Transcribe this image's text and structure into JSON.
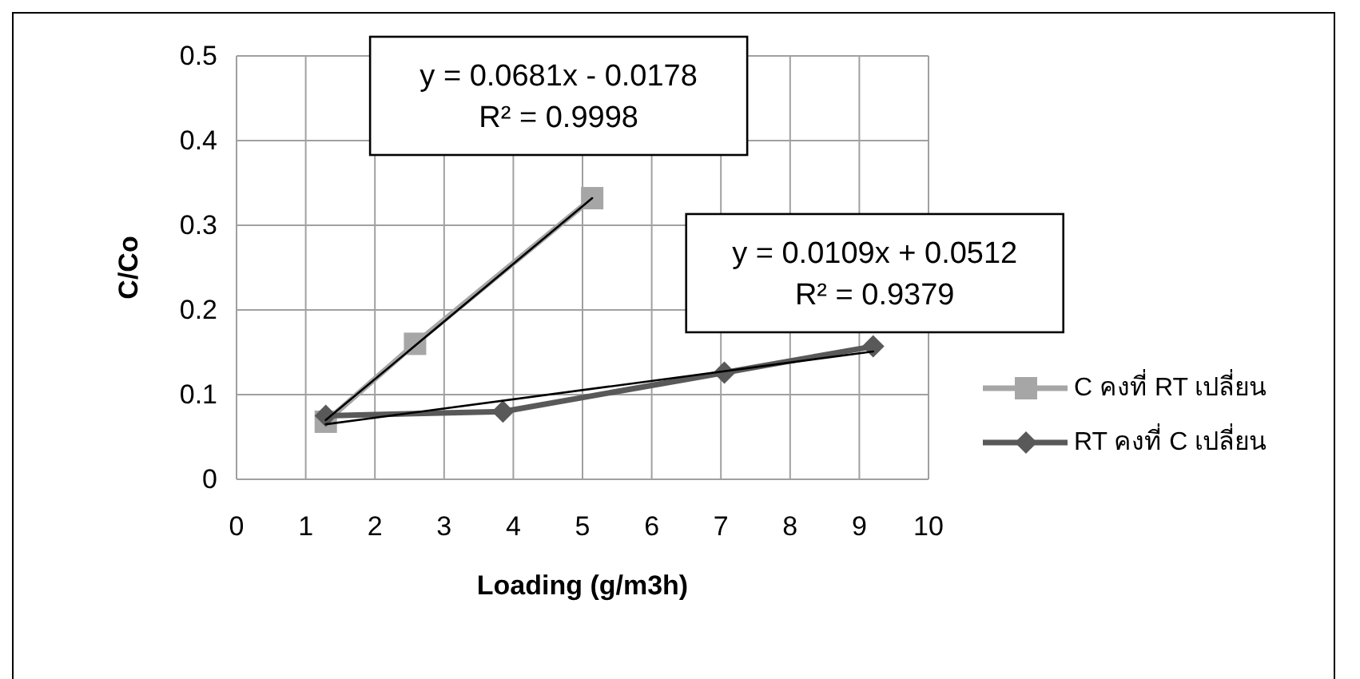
{
  "chart_data": {
    "type": "line",
    "xlabel": "Loading (g/m3h)",
    "ylabel": "C/Co",
    "xlim": [
      0,
      10
    ],
    "ylim": [
      0,
      0.5
    ],
    "xticks": [
      0,
      1,
      2,
      3,
      4,
      5,
      6,
      7,
      8,
      9,
      10
    ],
    "yticks": [
      0,
      0.1,
      0.2,
      0.3,
      0.4,
      0.5
    ],
    "grid": true,
    "legend": "right",
    "series": [
      {
        "name": "C คงที่ RT เปลี่ยน",
        "color": "#a6a6a6",
        "marker": "square",
        "x": [
          1.29,
          2.58,
          5.14
        ],
        "values": [
          0.068,
          0.16,
          0.332
        ]
      },
      {
        "name": "RT คงที่ C เปลี่ยน",
        "color": "#595959",
        "marker": "diamond",
        "x": [
          1.29,
          3.85,
          7.05,
          9.2
        ],
        "values": [
          0.075,
          0.08,
          0.126,
          0.157
        ]
      },
      {
        "color": "#000000",
        "marker": "none",
        "x": [
          1.29,
          5.14
        ],
        "values": [
          0.07,
          0.332
        ]
      },
      {
        "color": "#000000",
        "marker": "none",
        "x": [
          1.29,
          9.2
        ],
        "values": [
          0.065,
          0.151
        ]
      }
    ],
    "annotations": [
      "y = 0.0681x - 0.0178\nR² = 0.9998",
      "y = 0.0109x + 0.0512\nR² = 0.9379"
    ]
  }
}
